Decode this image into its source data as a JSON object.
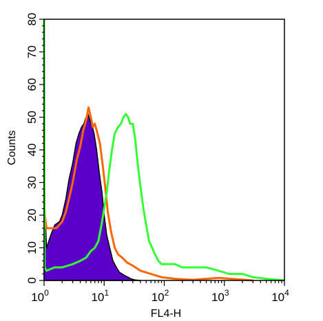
{
  "chart_data": {
    "type": "area",
    "xlabel": "FL4-H",
    "ylabel": "Counts",
    "xscale": "log",
    "xlim": [
      1,
      10000
    ],
    "ylim": [
      0,
      80
    ],
    "grid": false,
    "y_ticks": [
      "0",
      "10",
      "20",
      "30",
      "40",
      "50",
      "60",
      "70",
      "80"
    ],
    "x_ticks": [
      {
        "base": "10",
        "exp": "0",
        "value": 1
      },
      {
        "base": "10",
        "exp": "1",
        "value": 10
      },
      {
        "base": "10",
        "exp": "2",
        "value": 100
      },
      {
        "base": "10",
        "exp": "3",
        "value": 1000
      },
      {
        "base": "10",
        "exp": "4",
        "value": 10000
      }
    ],
    "series": [
      {
        "style": "filled",
        "color": "#5b00c8",
        "edge": "#000000",
        "x": [
          1,
          1.1,
          1.3,
          1.5,
          1.8,
          2.0,
          2.3,
          2.6,
          3.0,
          3.4,
          3.8,
          4.2,
          4.6,
          5.0,
          5.4,
          5.8,
          6.2,
          6.8,
          7.5,
          8.3,
          9.2,
          10,
          11,
          12,
          14,
          16,
          18,
          20,
          22,
          25,
          28,
          32,
          40
        ],
        "y": [
          28,
          10,
          14,
          17,
          18,
          20,
          25,
          31,
          36,
          42,
          45,
          47,
          48,
          50,
          51,
          49,
          48,
          45,
          40,
          33,
          27,
          20,
          14,
          11,
          6,
          4,
          2.5,
          2,
          1.5,
          1,
          0.5,
          0.2,
          0
        ]
      },
      {
        "style": "line",
        "color": "#ff6600",
        "x": [
          1,
          1.02,
          1.1,
          1.3,
          1.6,
          2.0,
          2.3,
          2.6,
          3.0,
          3.5,
          4.0,
          4.5,
          5.0,
          5.5,
          6.0,
          6.5,
          7.0,
          7.5,
          8.5,
          9.5,
          10.5,
          11.5,
          13,
          15,
          17,
          20,
          24,
          30,
          40,
          60,
          90,
          150,
          300,
          800,
          3000
        ],
        "y": [
          48,
          20,
          16,
          16,
          16,
          18,
          21,
          25,
          30,
          37,
          41,
          46,
          49,
          53,
          50,
          47,
          48,
          46,
          42,
          35,
          28,
          21,
          15,
          10,
          8,
          7,
          5.5,
          4.5,
          3,
          2,
          1,
          0.5,
          0.2,
          0.8,
          0
        ]
      },
      {
        "style": "line",
        "color": "#33ff33",
        "x": [
          1,
          1.02,
          1.1,
          1.5,
          2,
          3,
          4,
          5,
          6,
          7,
          8,
          9,
          10,
          11,
          12,
          13.5,
          15,
          17,
          19,
          21,
          23,
          25,
          27,
          30,
          33,
          36,
          40,
          45,
          50,
          56,
          63,
          70,
          80,
          90,
          100,
          120,
          150,
          200,
          300,
          500,
          800,
          1200,
          2000,
          3000,
          5000,
          10000
        ],
        "y": [
          80,
          4,
          3,
          4,
          4,
          5,
          6,
          7,
          9,
          10,
          12,
          17,
          22,
          27,
          33,
          40,
          45,
          47,
          48,
          50,
          51,
          50,
          48,
          48,
          43,
          36,
          29,
          22,
          17,
          12,
          10,
          8,
          6,
          5,
          5,
          5,
          5,
          4,
          4,
          4,
          3,
          2,
          2,
          1,
          0.5,
          0
        ]
      }
    ]
  }
}
